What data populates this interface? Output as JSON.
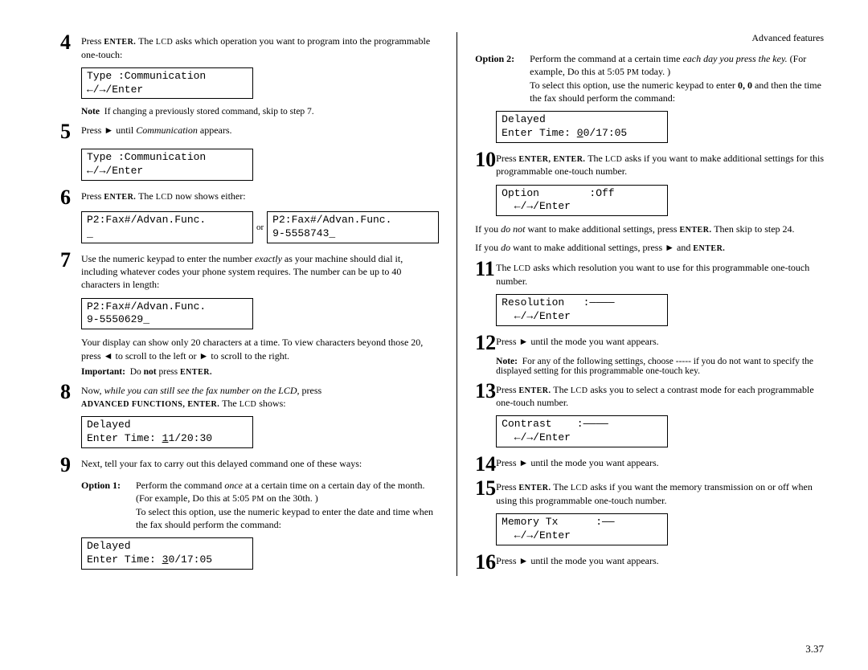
{
  "header": {
    "section": "Advanced features"
  },
  "page_number": "3.37",
  "left": {
    "step4": {
      "num": "4",
      "text_parts": [
        "Press ",
        "ENTER.",
        " The ",
        "LCD",
        " asks which operation you want to program into the programmable one-touch:"
      ],
      "lcd": "Type :Communication\n←/→/Enter",
      "note_label": "Note",
      "note_text": "If changing a previously stored command, skip to step 7."
    },
    "step5": {
      "num": "5",
      "text_parts": [
        "Press ► until  ",
        "Communication",
        "  appears."
      ],
      "lcd": "Type :Communication\n←/→/Enter"
    },
    "step6": {
      "num": "6",
      "text_parts": [
        "Press ",
        "ENTER.",
        " The ",
        "LCD",
        " now shows either:"
      ],
      "lcd_a": "P2:Fax#/Advan.Func.\n_",
      "or": "or",
      "lcd_b": "P2:Fax#/Advan.Func.\n9-5558743_"
    },
    "step7": {
      "num": "7",
      "text_parts": [
        "Use the numeric keypad to enter the number ",
        "exactly",
        " as your machine should dial it, including whatever codes your phone system requires. The number can be up to 40 characters in length:"
      ],
      "lcd": "P2:Fax#/Advan.Func.\n9-5550629_",
      "after": "Your display can show only 20 characters at a time. To view characters beyond those 20, press ◄ to scroll to the left or ► to scroll to the right.",
      "important_label": "Important:",
      "important_text_parts": [
        "Do ",
        "not",
        " press ",
        "ENTER."
      ]
    },
    "step8": {
      "num": "8",
      "text_parts": [
        "Now, ",
        "while you can still see the fax number on the LCD,",
        " press ",
        "ADVANCED FUNCTIONS, ENTER.",
        " The ",
        "LCD",
        " shows:"
      ],
      "lcd": "Delayed\nEnter Time: 11/20:30"
    },
    "step9": {
      "num": "9",
      "text": "Next, tell your fax to carry out this delayed command one of these ways:",
      "option1_label": "Option 1:",
      "option1_parts": [
        "Perform the command ",
        "once",
        " at a certain time on a certain day of the month. (For example,  Do this at 5:05 ",
        "PM",
        " on the 30th. )\nTo select this option, use the numeric keypad to enter the date and time when the fax should perform the command:"
      ],
      "lcd": "Delayed\nEnter Time: 30/17:05"
    }
  },
  "right": {
    "option2_label": "Option 2:",
    "option2_parts": [
      "Perform the command at a certain time ",
      "each day you press the key.",
      " (For example,  Do this at 5:05 ",
      "PM",
      " today. )\nTo select this option, use the numeric keypad to enter ",
      "0, 0",
      " and then the time the fax should perform the command:"
    ],
    "lcd_opt2": "Delayed\nEnter Time: 00/17:05",
    "step10": {
      "num": "10",
      "text_parts": [
        "Press ",
        "ENTER, ENTER.",
        " The ",
        "LCD",
        " asks if you want to make additional settings for this programmable one-touch number."
      ],
      "lcd": "Option        :Off\n  ←/→/Enter",
      "after1_parts": [
        "If you ",
        "do not",
        " want to make additional settings, press ",
        "ENTER.",
        " Then skip to step 24."
      ],
      "after2_parts": [
        "If you ",
        "do",
        " want to make additional settings, press ► and ",
        "ENTER."
      ]
    },
    "step11": {
      "num": "11",
      "text_parts": [
        "The ",
        "LCD",
        " asks which resolution you want to use for this programmable one-touch number."
      ],
      "lcd": "Resolution   :————\n  ←/→/Enter"
    },
    "step12": {
      "num": "12",
      "text": "Press ► until the mode you want appears.",
      "note_label": "Note:",
      "note_text": "For any of the following settings, choose  -----  if you do not want to specify the displayed setting for this programmable one-touch key."
    },
    "step13": {
      "num": "13",
      "text_parts": [
        "Press ",
        "ENTER.",
        " The ",
        "LCD",
        " asks you to select a contrast mode for each programmable one-touch number."
      ],
      "lcd": "Contrast    :————\n  ←/→/Enter"
    },
    "step14": {
      "num": "14",
      "text": "Press ► until the mode you want appears."
    },
    "step15": {
      "num": "15",
      "text_parts": [
        "Press ",
        "ENTER.",
        " The ",
        "LCD",
        " asks if you want the memory transmission on or off when using this programmable one-touch number."
      ],
      "lcd": "Memory Tx      :——\n  ←/→/Enter"
    },
    "step16": {
      "num": "16",
      "text": "Press ► until the mode you want appears."
    }
  }
}
